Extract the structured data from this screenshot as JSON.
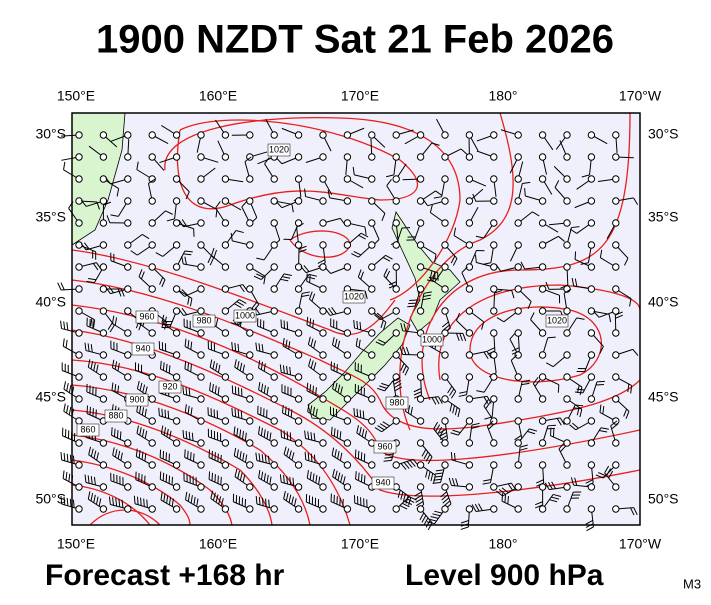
{
  "title": "1900 NZDT Sat 21 Feb 2026",
  "map": {
    "top_ticks": [
      "150°E",
      "160°E",
      "170°E",
      "180°",
      "170°W"
    ],
    "bottom_ticks": [
      "150°E",
      "160°E",
      "170°E",
      "180°",
      "170°W"
    ],
    "left_ticks": [
      "30°S",
      "35°S",
      "40°S",
      "45°S",
      "50°S"
    ],
    "right_ticks": [
      "30°S",
      "35°S",
      "40°S",
      "45°S",
      "50°S"
    ],
    "contour_labels": [
      "1020",
      "1020",
      "1020",
      "1000",
      "980",
      "960",
      "940",
      "920",
      "900",
      "880",
      "860",
      "1000",
      "980",
      "960",
      "940"
    ]
  },
  "footer": {
    "forecast": "Forecast +168 hr",
    "level": "Level 900 hPa",
    "model": "M3"
  }
}
